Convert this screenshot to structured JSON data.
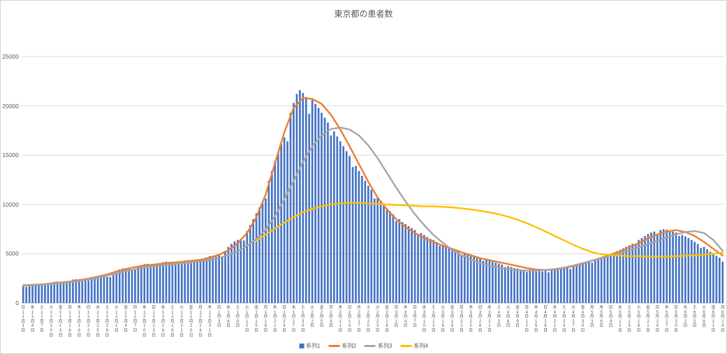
{
  "chart_data": {
    "type": "bar",
    "title": "東京都の患者数",
    "ylim": [
      0,
      25000
    ],
    "yticks": [
      0,
      5000,
      10000,
      15000,
      20000,
      25000
    ],
    "grid": true,
    "legend_position": "bottom-center",
    "x_start": "11月1日",
    "x_end": "6月14日",
    "x_label_interval_days": 3,
    "categories": [
      "日11月1日",
      "水11月4日",
      "土11月7日",
      "火11月10日",
      "金11月13日",
      "月11月16日",
      "木11月19日",
      "日11月22日",
      "水11月25日",
      "土11月28日",
      "火12月1日",
      "金12月4日",
      "月12月7日",
      "木12月10日",
      "日12月13日",
      "水12月16日",
      "土12月19日",
      "火12月22日",
      "金12月25日",
      "月12月28日",
      "木12月31日",
      "日1月3日",
      "水1月6日",
      "土1月9日",
      "火1月12日",
      "金1月15日",
      "月1月18日",
      "木1月21日",
      "日1月24日",
      "水1月27日",
      "土1月30日",
      "火2月2日",
      "金2月5日",
      "月2月8日",
      "木2月11日",
      "日2月14日",
      "水2月17日",
      "土2月20日",
      "火2月23日",
      "金2月26日",
      "月3月1日",
      "木3月4日",
      "日3月7日",
      "水3月10日",
      "土3月13日",
      "火3月16日",
      "金3月19日",
      "月3月22日",
      "木3月25日",
      "日3月28日",
      "水3月31日",
      "土4月3日",
      "火4月6日",
      "金4月9日",
      "月4月12日",
      "木4月15日",
      "日4月18日",
      "水4月21日",
      "土4月24日",
      "火4月27日",
      "金4月30日",
      "月5月3日",
      "木5月6日",
      "日5月9日",
      "水5月12日",
      "土5月15日",
      "火5月18日",
      "金5月21日",
      "月5月24日",
      "木5月27日",
      "日5月30日",
      "水6月2日",
      "土6月5日",
      "火6月8日",
      "金6月11日",
      "月6月14日"
    ],
    "bars": {
      "name": "系列1",
      "color": "#4472C4",
      "daily_values": [
        1800,
        1630,
        1820,
        1900,
        1950,
        1930,
        1880,
        1850,
        1900,
        2080,
        2150,
        2180,
        2120,
        2080,
        2060,
        2150,
        2380,
        2420,
        2400,
        2360,
        2320,
        2300,
        2420,
        2700,
        2760,
        2740,
        2700,
        2660,
        2640,
        2900,
        3250,
        3400,
        3500,
        3520,
        3480,
        3420,
        3350,
        3700,
        3850,
        3950,
        3980,
        3920,
        3870,
        3750,
        4050,
        4150,
        4200,
        4180,
        4120,
        4080,
        3950,
        4250,
        4320,
        4350,
        4330,
        4280,
        4240,
        4150,
        4500,
        4620,
        4750,
        4800,
        4850,
        4900,
        4700,
        5300,
        5700,
        6000,
        6250,
        6400,
        6500,
        6350,
        7300,
        7900,
        8500,
        9100,
        9700,
        10200,
        10600,
        12400,
        13400,
        14400,
        15300,
        16100,
        16800,
        16400,
        19300,
        20300,
        21200,
        21600,
        21300,
        20900,
        19200,
        20600,
        20200,
        19800,
        19300,
        18800,
        18300,
        17000,
        17400,
        16900,
        16400,
        15900,
        15400,
        14900,
        13800,
        13900,
        13400,
        12900,
        12400,
        11900,
        11500,
        10600,
        10700,
        10300,
        9900,
        9600,
        9300,
        9000,
        8300,
        8500,
        8200,
        8000,
        7800,
        7600,
        7400,
        6900,
        7100,
        6900,
        6700,
        6500,
        6400,
        6200,
        5800,
        5900,
        5800,
        5600,
        5500,
        5400,
        5300,
        4900,
        5100,
        5000,
        4900,
        4800,
        4700,
        4600,
        4300,
        4500,
        4400,
        4200,
        4100,
        4000,
        3900,
        3650,
        3750,
        3650,
        3550,
        3500,
        3400,
        3350,
        3150,
        3300,
        3250,
        3200,
        3250,
        3200,
        3250,
        3100,
        3350,
        3400,
        3450,
        3500,
        3550,
        3600,
        3450,
        3750,
        3850,
        3950,
        4050,
        4150,
        4250,
        4100,
        4450,
        4550,
        4650,
        4750,
        4850,
        4950,
        4800,
        5250,
        5400,
        5550,
        5700,
        5850,
        6000,
        5900,
        6400,
        6600,
        6800,
        7000,
        7150,
        7250,
        6900,
        7400,
        7500,
        7450,
        7350,
        7250,
        7150,
        6800,
        6900,
        6750,
        6600,
        6400,
        6200,
        6000,
        5600,
        5700,
        5450,
        5200,
        5000,
        4800,
        4600,
        4200
      ]
    },
    "series": [
      {
        "name": "系列2",
        "type": "line",
        "color": "#ED7D31",
        "values": [
          1800,
          1850,
          1900,
          1980,
          2080,
          2180,
          2320,
          2480,
          2680,
          2900,
          3200,
          3450,
          3650,
          3800,
          3900,
          4000,
          4100,
          4180,
          4280,
          4380,
          4600,
          4900,
          5350,
          6050,
          7100,
          8700,
          11000,
          14200,
          17300,
          19800,
          20800,
          20700,
          20200,
          19100,
          17600,
          15900,
          14100,
          12300,
          10700,
          9500,
          8500,
          7700,
          7100,
          6600,
          6200,
          5800,
          5500,
          5150,
          4850,
          4550,
          4350,
          4150,
          3950,
          3750,
          3550,
          3400,
          3350,
          3400,
          3550,
          3750,
          4000,
          4300,
          4600,
          4900,
          5250,
          5650,
          6100,
          6550,
          6950,
          7250,
          7400,
          7200,
          6800,
          6200,
          5500,
          4800
        ]
      },
      {
        "name": "系列3",
        "type": "line",
        "color": "#A5A5A5",
        "values": [
          1750,
          1800,
          1870,
          1950,
          2030,
          2120,
          2240,
          2400,
          2580,
          2780,
          3000,
          3230,
          3430,
          3600,
          3730,
          3840,
          3940,
          4030,
          4130,
          4230,
          4380,
          4570,
          4850,
          5250,
          5800,
          6500,
          7450,
          8800,
          10500,
          12400,
          14300,
          15900,
          17000,
          17650,
          17800,
          17600,
          17000,
          16000,
          14700,
          13200,
          11700,
          10300,
          9000,
          7900,
          6900,
          6100,
          5400,
          4850,
          4400,
          4050,
          3800,
          3600,
          3450,
          3350,
          3300,
          3300,
          3350,
          3450,
          3600,
          3800,
          4050,
          4300,
          4550,
          4800,
          5050,
          5350,
          5650,
          5950,
          6300,
          6650,
          6950,
          7200,
          7300,
          7100,
          6400,
          5300
        ]
      },
      {
        "name": "系列4",
        "type": "line",
        "color": "#FFC000",
        "values": [
          null,
          null,
          null,
          null,
          null,
          null,
          null,
          null,
          null,
          null,
          null,
          null,
          null,
          null,
          null,
          null,
          null,
          null,
          null,
          null,
          null,
          null,
          null,
          null,
          null,
          6300,
          6950,
          7550,
          8150,
          8700,
          9200,
          9550,
          9800,
          10000,
          10100,
          10150,
          10150,
          10100,
          10050,
          10000,
          9950,
          9900,
          9850,
          9800,
          9800,
          9750,
          9700,
          9600,
          9500,
          9350,
          9200,
          9000,
          8750,
          8450,
          8100,
          7700,
          7250,
          6800,
          6350,
          5900,
          5500,
          5150,
          4950,
          4850,
          4800,
          4750,
          4750,
          4700,
          4700,
          4700,
          4750,
          4800,
          4850,
          4900,
          5000,
          5100
        ]
      }
    ],
    "legend": [
      {
        "label": "系列1",
        "marker": "bar",
        "color": "#4472C4"
      },
      {
        "label": "系列2",
        "marker": "line",
        "color": "#ED7D31"
      },
      {
        "label": "系列3",
        "marker": "line",
        "color": "#A5A5A5"
      },
      {
        "label": "系列4",
        "marker": "line",
        "color": "#FFC000"
      }
    ]
  },
  "colors": {
    "gridline": "#d9d9d9",
    "axis_line": "#bfbfbf",
    "text": "#595959"
  }
}
